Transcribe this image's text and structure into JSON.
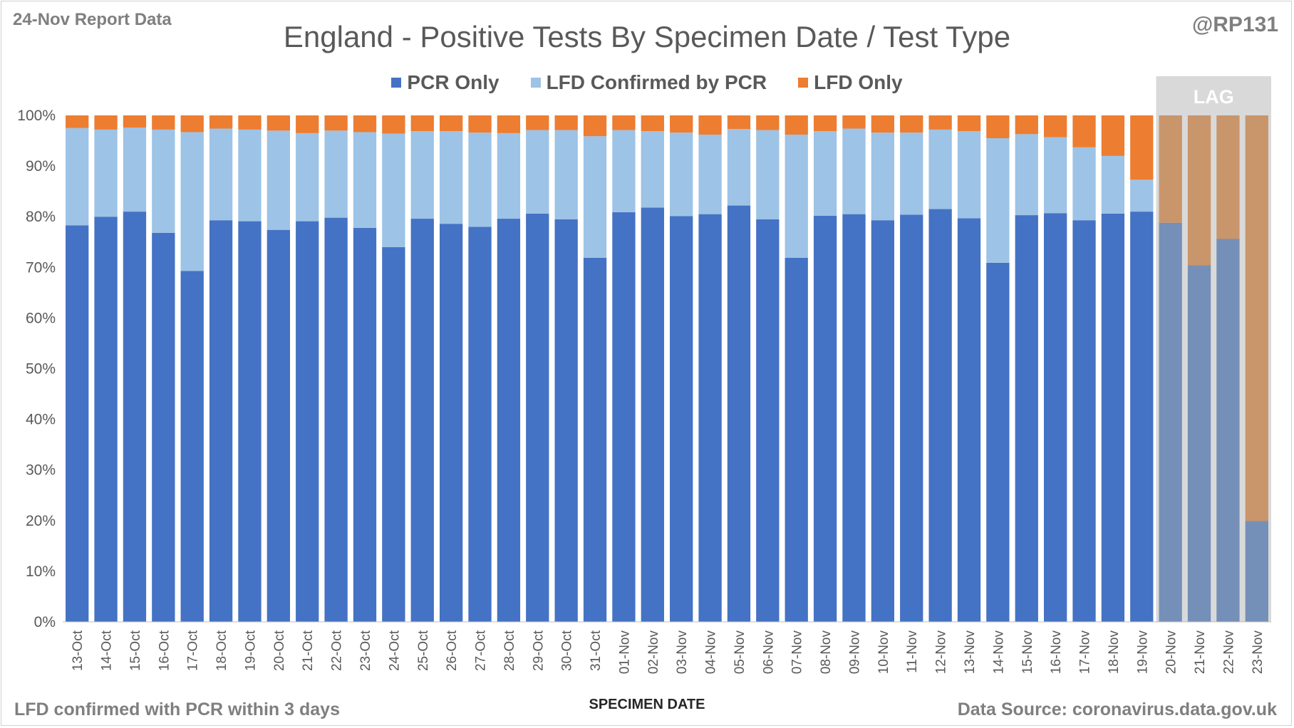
{
  "header": {
    "report_label": "24-Nov Report Data",
    "handle": "@RP131"
  },
  "footer": {
    "footnote": "LFD confirmed with PCR within 3 days",
    "source": "Data Source: coronavirus.data.gov.uk"
  },
  "chart_data": {
    "type": "bar",
    "stacked": true,
    "title": "England - Positive Tests By Specimen Date / Test Type",
    "xlabel": "SPECIMEN DATE",
    "ylabel": "",
    "ylim": [
      0,
      100
    ],
    "yticks": [
      "0%",
      "10%",
      "20%",
      "30%",
      "40%",
      "50%",
      "60%",
      "70%",
      "80%",
      "90%",
      "100%"
    ],
    "legend_position": "top-center",
    "categories": [
      "13-Oct",
      "14-Oct",
      "15-Oct",
      "16-Oct",
      "17-Oct",
      "18-Oct",
      "19-Oct",
      "20-Oct",
      "21-Oct",
      "22-Oct",
      "23-Oct",
      "24-Oct",
      "25-Oct",
      "26-Oct",
      "27-Oct",
      "28-Oct",
      "29-Oct",
      "30-Oct",
      "31-Oct",
      "01-Nov",
      "02-Nov",
      "03-Nov",
      "04-Nov",
      "05-Nov",
      "06-Nov",
      "07-Nov",
      "08-Nov",
      "09-Nov",
      "10-Nov",
      "11-Nov",
      "12-Nov",
      "13-Nov",
      "14-Nov",
      "15-Nov",
      "16-Nov",
      "17-Nov",
      "18-Nov",
      "19-Nov",
      "20-Nov",
      "21-Nov",
      "22-Nov",
      "23-Nov"
    ],
    "series": [
      {
        "name": "PCR Only",
        "color": "#4472c4",
        "values": [
          78.3,
          80.0,
          81.0,
          76.8,
          69.3,
          79.3,
          79.1,
          77.4,
          79.1,
          79.8,
          77.8,
          74.0,
          79.6,
          78.6,
          78.0,
          79.6,
          80.6,
          79.5,
          71.9,
          80.9,
          81.8,
          80.1,
          80.5,
          82.2,
          79.5,
          71.9,
          80.2,
          80.5,
          79.3,
          80.4,
          81.5,
          79.7,
          70.9,
          80.3,
          80.7,
          79.3,
          80.6,
          81.0,
          78.8,
          70.4,
          75.6,
          19.9
        ]
      },
      {
        "name": "LFD Confirmed by PCR",
        "color": "#9dc3e6",
        "values": [
          19.2,
          17.2,
          16.6,
          20.4,
          27.4,
          18.1,
          18.1,
          19.6,
          17.4,
          17.2,
          18.9,
          22.4,
          17.3,
          18.3,
          18.6,
          16.9,
          16.5,
          17.6,
          24.0,
          16.2,
          15.1,
          16.5,
          15.7,
          15.1,
          17.6,
          24.3,
          16.7,
          16.9,
          17.3,
          16.2,
          15.7,
          17.2,
          24.6,
          16.0,
          15.0,
          14.4,
          11.4,
          6.3,
          0,
          0,
          0,
          0
        ]
      },
      {
        "name": "LFD Only",
        "color": "#ed7d31",
        "values": [
          2.5,
          2.8,
          2.4,
          2.8,
          3.3,
          2.6,
          2.8,
          3.0,
          3.5,
          3.0,
          3.3,
          3.6,
          3.1,
          3.1,
          3.4,
          3.5,
          2.9,
          2.9,
          4.1,
          2.9,
          3.1,
          3.4,
          3.8,
          2.7,
          2.9,
          3.8,
          3.1,
          2.6,
          3.4,
          3.4,
          2.8,
          3.1,
          4.5,
          3.7,
          4.3,
          6.3,
          8.0,
          12.7,
          21.2,
          29.6,
          24.4,
          80.1
        ]
      }
    ],
    "lag": {
      "label": "LAG",
      "categories": [
        "20-Nov",
        "21-Nov",
        "22-Nov",
        "23-Nov"
      ],
      "pcr_color": "#7490b8",
      "lfd_color": "#c9956b",
      "overlay_color": "#d9d9d9"
    },
    "grid": false
  }
}
